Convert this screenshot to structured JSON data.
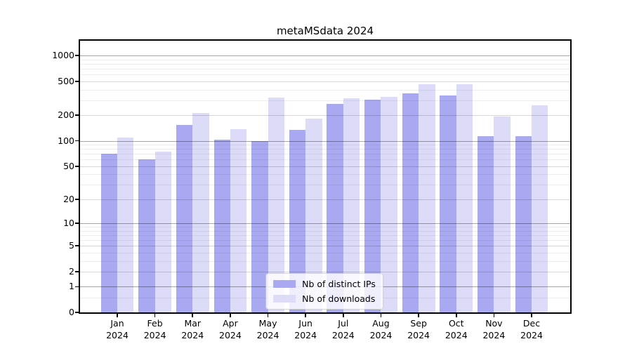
{
  "chart_data": {
    "type": "bar",
    "title": "metaMSdata 2024",
    "categories": [
      "Jan 2024",
      "Feb 2024",
      "Mar 2024",
      "Apr 2024",
      "May 2024",
      "Jun 2024",
      "Jul 2024",
      "Aug 2024",
      "Sep 2024",
      "Oct 2024",
      "Nov 2024",
      "Dec 2024"
    ],
    "series": [
      {
        "name": "Nb of distinct IPs",
        "color": "#a9a9f1",
        "values": [
          70,
          60,
          155,
          104,
          100,
          135,
          270,
          305,
          360,
          340,
          113,
          114
        ]
      },
      {
        "name": "Nb of downloads",
        "color": "#dcdcf8",
        "values": [
          110,
          75,
          212,
          137,
          323,
          182,
          316,
          331,
          467,
          460,
          194,
          260
        ]
      }
    ],
    "yscale": "log1p",
    "y_ticks": [
      0,
      1,
      2,
      5,
      10,
      20,
      50,
      100,
      200,
      500,
      1000
    ],
    "y_minor_ticks": [
      0.5,
      3,
      4,
      6,
      7,
      8,
      9,
      30,
      40,
      60,
      70,
      80,
      90,
      300,
      400,
      600,
      700,
      800,
      900
    ],
    "ylim": [
      0,
      1500
    ],
    "xlabel": "",
    "ylabel": "",
    "grid": true,
    "legend_position": "lower center",
    "background_color": "#ffffff",
    "axis_color": "#000000"
  }
}
